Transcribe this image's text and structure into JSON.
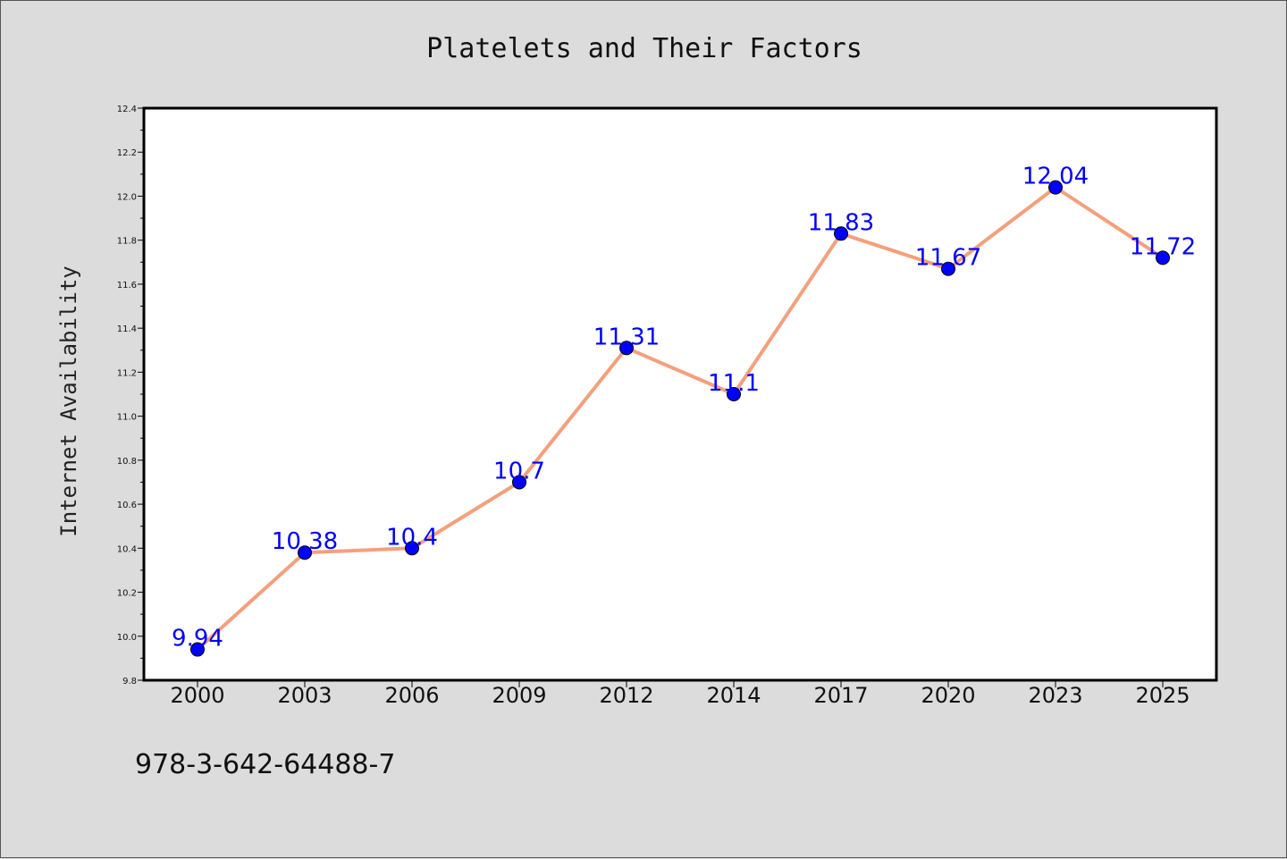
{
  "chart_data": {
    "type": "line",
    "title": "Platelets and Their Factors",
    "xlabel": "",
    "ylabel": "Internet Availability",
    "categories": [
      "2000",
      "2003",
      "2006",
      "2009",
      "2012",
      "2014",
      "2017",
      "2020",
      "2023",
      "2025"
    ],
    "series": [
      {
        "values": [
          9.94,
          10.38,
          10.4,
          10.7,
          11.31,
          11.1,
          11.83,
          11.67,
          12.04,
          11.72
        ],
        "data_labels": [
          "9.94",
          "10.38",
          "10.4",
          "10.7",
          "11.31",
          "11.1",
          "11.83",
          "11.67",
          "12.04",
          "11.72"
        ],
        "line_color": "#f4a07c",
        "marker_color": "#0000ff"
      }
    ],
    "ylim": [
      9.8,
      12.4
    ],
    "yticks": [
      9.8,
      10.0,
      10.2,
      10.4,
      10.6,
      10.8,
      11.0,
      11.2,
      11.4,
      11.6,
      11.8,
      12.0,
      12.2,
      12.4
    ],
    "ytick_labels": [
      "9.8",
      "10.0",
      "10.2",
      "10.4",
      "10.6",
      "10.8",
      "11.0",
      "11.2",
      "11.4",
      "11.6",
      "11.8",
      "12.0",
      "12.2",
      "12.4"
    ],
    "grid": false,
    "legend": "none"
  },
  "footer": {
    "code": "978-3-642-64488-7"
  }
}
